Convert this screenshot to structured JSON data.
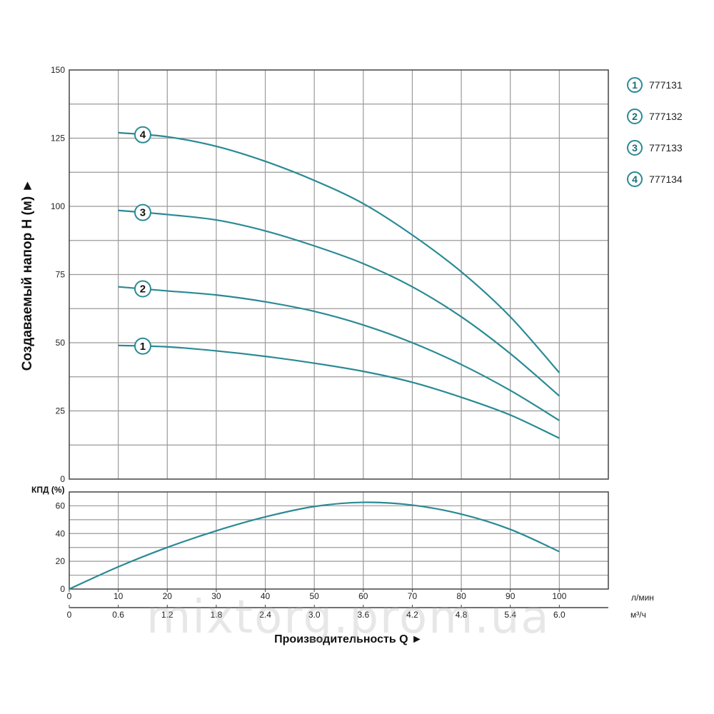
{
  "chart_data": [
    {
      "type": "line",
      "ylabel": "Создаваемый напор H (м) ►",
      "ylim": [
        0,
        150
      ],
      "yticks": [
        0,
        25,
        50,
        75,
        100,
        125,
        150
      ],
      "xlim": [
        0,
        110
      ],
      "grid": true,
      "legend_position": "right",
      "series": [
        {
          "name": "777131",
          "marker": "1",
          "x": [
            10,
            20,
            30,
            40,
            50,
            60,
            70,
            80,
            90,
            100
          ],
          "values": [
            49,
            48.5,
            47,
            45,
            42.5,
            39.5,
            35.5,
            30,
            23.5,
            15
          ]
        },
        {
          "name": "777132",
          "marker": "2",
          "x": [
            10,
            20,
            30,
            40,
            50,
            60,
            70,
            80,
            90,
            100
          ],
          "values": [
            70.5,
            69,
            67.5,
            65,
            61.5,
            56.5,
            50,
            42,
            32.5,
            21.5
          ]
        },
        {
          "name": "777133",
          "marker": "3",
          "x": [
            10,
            20,
            30,
            40,
            50,
            60,
            70,
            80,
            90,
            100
          ],
          "values": [
            98.5,
            97,
            95,
            91,
            85.5,
            79,
            70.5,
            59.5,
            46,
            30.5
          ]
        },
        {
          "name": "777134",
          "marker": "4",
          "x": [
            10,
            20,
            30,
            40,
            50,
            60,
            70,
            80,
            90,
            100
          ],
          "values": [
            127,
            125.5,
            122,
            116.5,
            109.5,
            101,
            89.5,
            76,
            59.5,
            39
          ]
        }
      ],
      "marker_x": 15
    },
    {
      "type": "line",
      "ylabel": "КПД (%)",
      "ylim": [
        0,
        70
      ],
      "yticks": [
        0,
        20,
        40,
        60
      ],
      "xlim": [
        0,
        110
      ],
      "grid": true,
      "series": [
        {
          "x": [
            0,
            10,
            20,
            30,
            40,
            50,
            60,
            70,
            80,
            90,
            100
          ],
          "values": [
            0,
            16,
            30,
            42,
            52,
            59.5,
            62.5,
            60.5,
            54,
            43,
            27
          ]
        }
      ]
    }
  ],
  "axes": {
    "lpm": {
      "unit": "л/мин",
      "ticks": [
        0,
        10,
        20,
        30,
        40,
        50,
        60,
        70,
        80,
        90,
        100
      ]
    },
    "m3h": {
      "unit": "м³/ч",
      "ticks": [
        "0",
        "0.6",
        "1.2",
        "1.8",
        "2.4",
        "3.0",
        "3.6",
        "4.2",
        "4.8",
        "5.4",
        "6.0"
      ]
    },
    "xlabel": "Производительность Q ►"
  },
  "legend": [
    {
      "marker": "1",
      "label": "777131"
    },
    {
      "marker": "2",
      "label": "777132"
    },
    {
      "marker": "3",
      "label": "777133"
    },
    {
      "marker": "4",
      "label": "777134"
    }
  ],
  "watermark": "mixtorg.prom.ua",
  "colors": {
    "curve": "#2a8a94",
    "grid": "#9a9a9a",
    "frame": "#444444",
    "marker_text": "#1a6e78"
  }
}
